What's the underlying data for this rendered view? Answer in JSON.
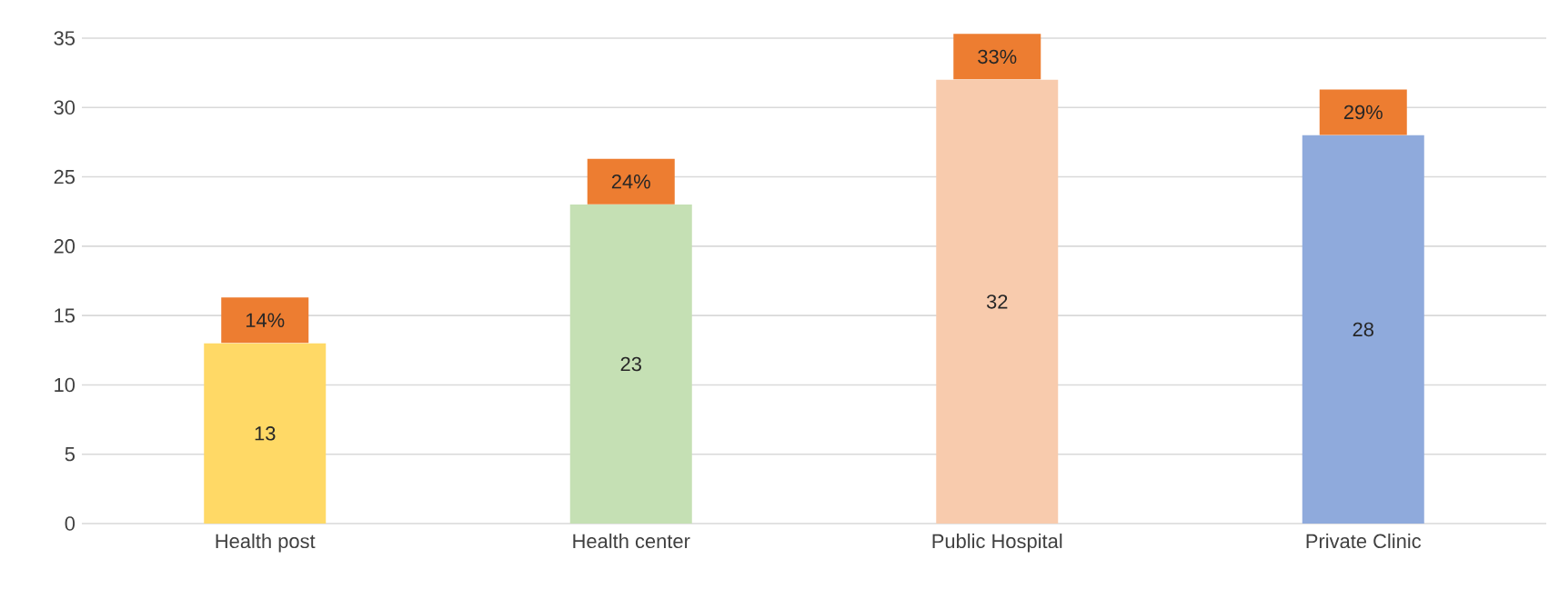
{
  "chart_data": {
    "type": "bar",
    "categories": [
      "Health post",
      "Health center",
      "Public Hospital",
      "Private Clinic"
    ],
    "values": [
      13,
      23,
      32,
      28
    ],
    "colors": [
      "#ffd966",
      "#c5e0b4",
      "#f8cbad",
      "#8faadc"
    ],
    "data_labels": true,
    "ylim": [
      0,
      35
    ],
    "yticks": [
      0,
      5,
      10,
      15,
      20,
      25,
      30,
      35
    ],
    "grid": "y",
    "annotations": [
      {
        "text": "14%",
        "x": "Health post",
        "y": 13
      },
      {
        "text": "24%",
        "x": "Health center",
        "y": 23
      },
      {
        "text": "33%",
        "x": "Public Hospital",
        "y": 32
      },
      {
        "text": "29%",
        "x": "Private Clinic",
        "y": 28
      }
    ]
  }
}
